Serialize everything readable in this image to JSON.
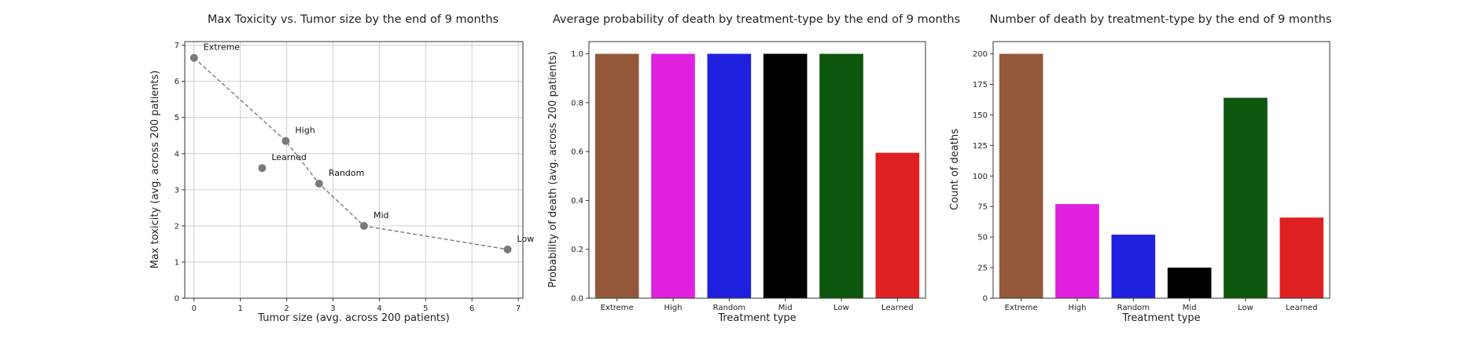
{
  "chart_data": [
    {
      "type": "scatter",
      "title": "Max Toxicity vs. Tumor size by the end of 9 months",
      "xlabel": "Tumor size (avg. across 200 patients)",
      "ylabel": "Max toxicity (avg. across 200 patients)",
      "xlim": [
        -0.2,
        7.1
      ],
      "ylim": [
        0,
        7.1
      ],
      "xticks": [
        "0",
        "1",
        "2",
        "3",
        "4",
        "5",
        "6",
        "7"
      ],
      "yticks": [
        "0",
        "1",
        "2",
        "3",
        "4",
        "5",
        "6",
        "7"
      ],
      "grid": true,
      "point_color": "#7a7a7a",
      "line_color": "#7a7a7a",
      "points": [
        {
          "label": "Extreme",
          "x": 0.0,
          "y": 6.65
        },
        {
          "label": "High",
          "x": 1.98,
          "y": 4.35
        },
        {
          "label": "Learned",
          "x": 1.47,
          "y": 3.6
        },
        {
          "label": "Random",
          "x": 2.7,
          "y": 3.17
        },
        {
          "label": "Mid",
          "x": 3.67,
          "y": 2.0
        },
        {
          "label": "Low",
          "x": 6.77,
          "y": 1.35
        }
      ],
      "dashed_line_order": [
        "Extreme",
        "High",
        "Random",
        "Mid",
        "Low"
      ]
    },
    {
      "type": "bar",
      "title": "Average probability of death by treatment-type by the end of 9 months",
      "xlabel": "Treatment type",
      "ylabel": "Probability of death (avg. across 200 patients)",
      "ylim": [
        0,
        1.05
      ],
      "yticks": [
        "0.0",
        "0.2",
        "0.4",
        "0.6",
        "0.8",
        "1.0"
      ],
      "categories": [
        "Extreme",
        "High",
        "Random",
        "Mid",
        "Low",
        "Learned"
      ],
      "values": [
        1.0,
        1.0,
        1.0,
        1.0,
        1.0,
        0.595
      ],
      "colors": [
        "#93583a",
        "#df20df",
        "#2020df",
        "#000000",
        "#0d560d",
        "#df2020"
      ]
    },
    {
      "type": "bar",
      "title": "Number of death by treatment-type by the end of 9 months",
      "xlabel": "Treatment type",
      "ylabel": "Count of deaths",
      "ylim": [
        0,
        210
      ],
      "yticks": [
        "0",
        "25",
        "50",
        "75",
        "100",
        "125",
        "150",
        "175",
        "200"
      ],
      "categories": [
        "Extreme",
        "High",
        "Random",
        "Mid",
        "Low",
        "Learned"
      ],
      "values": [
        200,
        77,
        52,
        25,
        164,
        66
      ],
      "colors": [
        "#93583a",
        "#df20df",
        "#2020df",
        "#000000",
        "#0d560d",
        "#df2020"
      ]
    }
  ]
}
